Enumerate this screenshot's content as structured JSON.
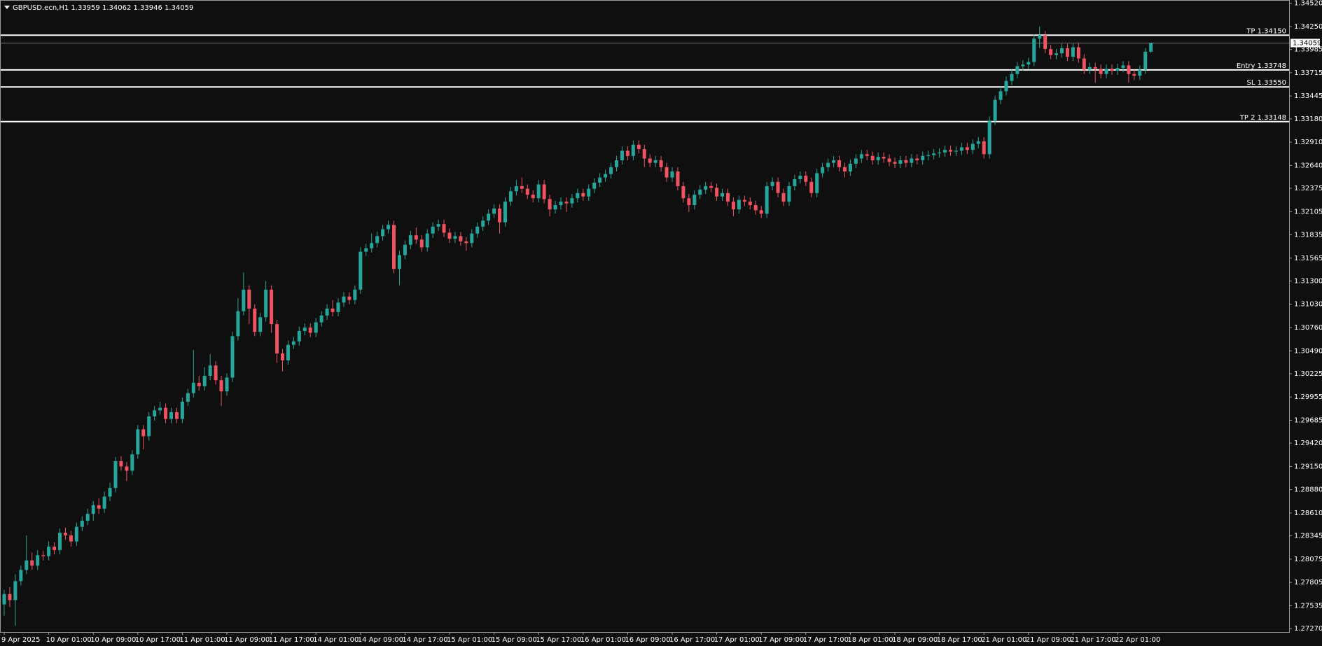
{
  "chart_data": {
    "type": "candlestick",
    "title": "GBPUSD.ecn,H1  1.33959 1.34062 1.33946 1.34059",
    "bull_color": "#26a69a",
    "bear_color": "#ef5361",
    "ylim": [
      1.2723,
      1.3455
    ],
    "yticks": [
      {
        "value": 1.3452,
        "label": "1.34520"
      },
      {
        "value": 1.3425,
        "label": "1.34250"
      },
      {
        "value": 1.33985,
        "label": "1.33985"
      },
      {
        "value": 1.33715,
        "label": "1.33715"
      },
      {
        "value": 1.33445,
        "label": "1.33445"
      },
      {
        "value": 1.3318,
        "label": "1.33180"
      },
      {
        "value": 1.3291,
        "label": "1.32910"
      },
      {
        "value": 1.3264,
        "label": "1.32640"
      },
      {
        "value": 1.32375,
        "label": "1.32375"
      },
      {
        "value": 1.32105,
        "label": "1.32105"
      },
      {
        "value": 1.31835,
        "label": "1.31835"
      },
      {
        "value": 1.31565,
        "label": "1.31565"
      },
      {
        "value": 1.313,
        "label": "1.31300"
      },
      {
        "value": 1.3103,
        "label": "1.31030"
      },
      {
        "value": 1.3076,
        "label": "1.30760"
      },
      {
        "value": 1.3049,
        "label": "1.30490"
      },
      {
        "value": 1.30225,
        "label": "1.30225"
      },
      {
        "value": 1.29955,
        "label": "1.29955"
      },
      {
        "value": 1.29685,
        "label": "1.29685"
      },
      {
        "value": 1.2942,
        "label": "1.29420"
      },
      {
        "value": 1.2915,
        "label": "1.29150"
      },
      {
        "value": 1.2888,
        "label": "1.28880"
      },
      {
        "value": 1.2861,
        "label": "1.28610"
      },
      {
        "value": 1.28345,
        "label": "1.28345"
      },
      {
        "value": 1.28075,
        "label": "1.28075"
      },
      {
        "value": 1.27805,
        "label": "1.27805"
      },
      {
        "value": 1.27535,
        "label": "1.27535"
      },
      {
        "value": 1.2727,
        "label": "1.27270"
      }
    ],
    "levels": [
      {
        "label": "TP 1.34150",
        "value": 1.3415
      },
      {
        "label": "Entry 1.33748",
        "value": 1.33748
      },
      {
        "label": "SL 1.33550",
        "value": 1.3355
      },
      {
        "label": "TP 2 1.33148",
        "value": 1.33148
      }
    ],
    "price_line": {
      "value": 1.34059,
      "label": "1.34059"
    },
    "categories": [
      "9 Apr 2025",
      null,
      null,
      null,
      null,
      null,
      null,
      null,
      "10 Apr 01:00",
      null,
      null,
      null,
      null,
      null,
      null,
      null,
      "10 Apr 09:00",
      null,
      null,
      null,
      null,
      null,
      null,
      null,
      "10 Apr 17:00",
      null,
      null,
      null,
      null,
      null,
      null,
      null,
      "11 Apr 01:00",
      null,
      null,
      null,
      null,
      null,
      null,
      null,
      "11 Apr 09:00",
      null,
      null,
      null,
      null,
      null,
      null,
      null,
      "11 Apr 17:00",
      null,
      null,
      null,
      null,
      null,
      null,
      null,
      "14 Apr 01:00",
      null,
      null,
      null,
      null,
      null,
      null,
      null,
      "14 Apr 09:00",
      null,
      null,
      null,
      null,
      null,
      null,
      null,
      "14 Apr 17:00",
      null,
      null,
      null,
      null,
      null,
      null,
      null,
      "15 Apr 01:00",
      null,
      null,
      null,
      null,
      null,
      null,
      null,
      "15 Apr 09:00",
      null,
      null,
      null,
      null,
      null,
      null,
      null,
      "15 Apr 17:00",
      null,
      null,
      null,
      null,
      null,
      null,
      null,
      "16 Apr 01:00",
      null,
      null,
      null,
      null,
      null,
      null,
      null,
      "16 Apr 09:00",
      null,
      null,
      null,
      null,
      null,
      null,
      null,
      "16 Apr 17:00",
      null,
      null,
      null,
      null,
      null,
      null,
      null,
      "17 Apr 01:00",
      null,
      null,
      null,
      null,
      null,
      null,
      null,
      "17 Apr 09:00",
      null,
      null,
      null,
      null,
      null,
      null,
      null,
      "17 Apr 17:00",
      null,
      null,
      null,
      null,
      null,
      null,
      null,
      "18 Apr 01:00",
      null,
      null,
      null,
      null,
      null,
      null,
      null,
      "18 Apr 09:00",
      null,
      null,
      null,
      null,
      null,
      null,
      null,
      "18 Apr 17:00",
      null,
      null,
      null,
      null,
      null,
      null,
      null,
      "21 Apr 01:00",
      null,
      null,
      null,
      null,
      null,
      null,
      null,
      "21 Apr 09:00",
      null,
      null,
      null,
      null,
      null,
      null,
      null,
      "21 Apr 17:00",
      null,
      null,
      null,
      null,
      null,
      null,
      null,
      "22 Apr 01:00",
      null,
      null,
      null,
      null,
      null,
      null
    ],
    "open": [
      1.2755,
      1.2767,
      1.276,
      1.2782,
      1.2795,
      1.2806,
      1.28,
      1.2812,
      1.2811,
      1.2822,
      1.2818,
      1.2838,
      1.2835,
      1.2828,
      1.2845,
      1.2852,
      1.286,
      1.287,
      1.2866,
      1.288,
      1.289,
      1.2921,
      1.2915,
      1.291,
      1.2929,
      1.2958,
      1.295,
      1.2973,
      1.298,
      1.2983,
      1.297,
      1.2978,
      1.297,
      1.299,
      1.3,
      1.3012,
      1.3008,
      1.302,
      1.3032,
      1.3015,
      1.3002,
      1.3018,
      1.3066,
      1.3095,
      1.312,
      1.3098,
      1.3071,
      1.3088,
      1.312,
      1.308,
      1.3046,
      1.3038,
      1.3056,
      1.306,
      1.3072,
      1.3076,
      1.307,
      1.3082,
      1.309,
      1.3098,
      1.3094,
      1.3105,
      1.3112,
      1.3108,
      1.312,
      1.3164,
      1.3168,
      1.3174,
      1.3182,
      1.319,
      1.3195,
      1.3144,
      1.316,
      1.3172,
      1.3183,
      1.3178,
      1.3169,
      1.3185,
      1.3193,
      1.3196,
      1.3186,
      1.3179,
      1.3182,
      1.3176,
      1.3174,
      1.3185,
      1.3193,
      1.32,
      1.3208,
      1.3214,
      1.3198,
      1.3222,
      1.3234,
      1.324,
      1.3237,
      1.323,
      1.3226,
      1.3242,
      1.3225,
      1.3213,
      1.3218,
      1.3222,
      1.322,
      1.3226,
      1.3232,
      1.3228,
      1.3237,
      1.3244,
      1.325,
      1.3254,
      1.3262,
      1.327,
      1.3281,
      1.3275,
      1.3288,
      1.3283,
      1.3272,
      1.3267,
      1.327,
      1.3262,
      1.325,
      1.3257,
      1.324,
      1.3226,
      1.3218,
      1.323,
      1.3236,
      1.324,
      1.3238,
      1.3228,
      1.3232,
      1.3222,
      1.3213,
      1.3224,
      1.3222,
      1.3218,
      1.3212,
      1.3208,
      1.324,
      1.3245,
      1.3232,
      1.3222,
      1.324,
      1.3248,
      1.3252,
      1.3245,
      1.3232,
      1.3255,
      1.3262,
      1.3267,
      1.327,
      1.3262,
      1.3257,
      1.3266,
      1.3272,
      1.3277,
      1.3275,
      1.327,
      1.3274,
      1.3272,
      1.3268,
      1.3266,
      1.327,
      1.3267,
      1.3272,
      1.327,
      1.3275,
      1.3276,
      1.3278,
      1.3279,
      1.3282,
      1.328,
      1.3281,
      1.3285,
      1.3282,
      1.3289,
      1.3292,
      1.3277,
      1.3316,
      1.334,
      1.335,
      1.3362,
      1.337,
      1.3379,
      1.3381,
      1.3384,
      1.3411,
      1.3415,
      1.3399,
      1.3392,
      1.3394,
      1.34,
      1.339,
      1.3401,
      1.3388,
      1.3375,
      1.3378,
      1.3376,
      1.337,
      1.3376,
      1.3374,
      1.3377,
      1.338,
      1.337,
      1.3368,
      1.3375,
      1.33959
    ],
    "high": [
      1.2772,
      1.2775,
      1.279,
      1.28,
      1.2835,
      1.2815,
      1.2818,
      1.2817,
      1.2828,
      1.2827,
      1.2843,
      1.2844,
      1.284,
      1.285,
      1.2857,
      1.2866,
      1.2875,
      1.2878,
      1.2886,
      1.2896,
      1.2926,
      1.2927,
      1.292,
      1.2934,
      1.2963,
      1.2963,
      1.2978,
      1.2985,
      1.299,
      1.2988,
      1.2983,
      1.2983,
      1.2995,
      1.3005,
      1.305,
      1.302,
      1.303,
      1.3045,
      1.3037,
      1.302,
      1.3023,
      1.3071,
      1.311,
      1.314,
      1.3125,
      1.3103,
      1.3093,
      1.313,
      1.3125,
      1.3085,
      1.3051,
      1.3061,
      1.3065,
      1.3077,
      1.3081,
      1.3081,
      1.3087,
      1.3095,
      1.3103,
      1.3108,
      1.311,
      1.3117,
      1.3117,
      1.3125,
      1.3169,
      1.3173,
      1.3185,
      1.3187,
      1.3195,
      1.32,
      1.32,
      1.3165,
      1.3177,
      1.3188,
      1.3192,
      1.3183,
      1.319,
      1.3198,
      1.3201,
      1.3201,
      1.3191,
      1.3187,
      1.3187,
      1.3181,
      1.319,
      1.3198,
      1.3205,
      1.3213,
      1.3219,
      1.3219,
      1.3227,
      1.3239,
      1.3247,
      1.325,
      1.3242,
      1.3235,
      1.3247,
      1.3247,
      1.323,
      1.3223,
      1.3227,
      1.3227,
      1.3231,
      1.3237,
      1.3237,
      1.3242,
      1.3249,
      1.3255,
      1.3259,
      1.3267,
      1.3275,
      1.3286,
      1.3286,
      1.3293,
      1.3293,
      1.3288,
      1.3277,
      1.3275,
      1.3275,
      1.3267,
      1.3262,
      1.3262,
      1.3245,
      1.3231,
      1.3235,
      1.3241,
      1.3245,
      1.3245,
      1.3243,
      1.3237,
      1.3237,
      1.3227,
      1.3229,
      1.3229,
      1.3227,
      1.3223,
      1.3217,
      1.3245,
      1.325,
      1.325,
      1.3237,
      1.3245,
      1.3253,
      1.3257,
      1.3257,
      1.325,
      1.326,
      1.3267,
      1.3272,
      1.3275,
      1.3275,
      1.3267,
      1.3271,
      1.3277,
      1.3282,
      1.3282,
      1.328,
      1.3279,
      1.3279,
      1.3277,
      1.3273,
      1.3275,
      1.3275,
      1.3277,
      1.3277,
      1.328,
      1.3281,
      1.3283,
      1.3284,
      1.3287,
      1.3287,
      1.3286,
      1.329,
      1.329,
      1.3294,
      1.3297,
      1.3297,
      1.3321,
      1.3345,
      1.3355,
      1.3367,
      1.3375,
      1.3384,
      1.3386,
      1.3389,
      1.3416,
      1.3425,
      1.342,
      1.3404,
      1.3399,
      1.3405,
      1.3405,
      1.3406,
      1.3406,
      1.3393,
      1.3383,
      1.3383,
      1.3381,
      1.3381,
      1.3381,
      1.3382,
      1.3385,
      1.3385,
      1.3375,
      1.338,
      1.34,
      1.34062
    ],
    "low": [
      1.2742,
      1.2752,
      1.273,
      1.2777,
      1.279,
      1.2795,
      1.2795,
      1.2806,
      1.2806,
      1.2813,
      1.2813,
      1.283,
      1.2822,
      1.2823,
      1.284,
      1.2847,
      1.2852,
      1.286,
      1.2861,
      1.2875,
      1.2885,
      1.291,
      1.2898,
      1.2905,
      1.2924,
      1.2935,
      1.2945,
      1.2968,
      1.2975,
      1.2965,
      1.2965,
      1.2965,
      1.2965,
      1.2985,
      1.2995,
      1.3003,
      1.3003,
      1.3015,
      1.301,
      1.2985,
      1.2997,
      1.3013,
      1.3061,
      1.309,
      1.308,
      1.3066,
      1.3066,
      1.3083,
      1.307,
      1.3035,
      1.3025,
      1.3033,
      1.3051,
      1.3055,
      1.3067,
      1.3065,
      1.3065,
      1.3077,
      1.3085,
      1.3089,
      1.3089,
      1.31,
      1.3103,
      1.3103,
      1.3115,
      1.3159,
      1.3163,
      1.3169,
      1.3177,
      1.3185,
      1.3139,
      1.3125,
      1.3155,
      1.3167,
      1.3173,
      1.3164,
      1.3164,
      1.318,
      1.3188,
      1.3181,
      1.3174,
      1.3174,
      1.3171,
      1.3165,
      1.3169,
      1.318,
      1.3188,
      1.3195,
      1.3203,
      1.3185,
      1.3193,
      1.3217,
      1.3229,
      1.3232,
      1.3225,
      1.3221,
      1.3221,
      1.322,
      1.3205,
      1.3208,
      1.3213,
      1.321,
      1.3215,
      1.3221,
      1.3223,
      1.3223,
      1.3232,
      1.3239,
      1.3245,
      1.3249,
      1.3257,
      1.3265,
      1.327,
      1.327,
      1.3278,
      1.3262,
      1.3262,
      1.3262,
      1.3257,
      1.3245,
      1.3245,
      1.3235,
      1.3221,
      1.321,
      1.3213,
      1.3225,
      1.3231,
      1.3233,
      1.3223,
      1.3223,
      1.3217,
      1.3205,
      1.3208,
      1.3217,
      1.3213,
      1.3207,
      1.3203,
      1.3203,
      1.3235,
      1.3227,
      1.3217,
      1.3217,
      1.3235,
      1.3243,
      1.324,
      1.3227,
      1.3227,
      1.325,
      1.3257,
      1.3262,
      1.3257,
      1.325,
      1.3252,
      1.3261,
      1.3267,
      1.327,
      1.3265,
      1.3265,
      1.3267,
      1.3263,
      1.3261,
      1.3261,
      1.3262,
      1.3262,
      1.3265,
      1.3265,
      1.327,
      1.3271,
      1.3273,
      1.3274,
      1.3275,
      1.3275,
      1.3276,
      1.3277,
      1.3277,
      1.3284,
      1.3272,
      1.3272,
      1.3311,
      1.3335,
      1.3345,
      1.3357,
      1.3365,
      1.3374,
      1.3376,
      1.3379,
      1.34,
      1.3394,
      1.3387,
      1.3387,
      1.3389,
      1.3385,
      1.3385,
      1.3383,
      1.337,
      1.337,
      1.336,
      1.3365,
      1.3365,
      1.3369,
      1.3369,
      1.3372,
      1.336,
      1.3363,
      1.3363,
      1.337,
      1.33946
    ],
    "close": [
      1.2767,
      1.276,
      1.2782,
      1.2795,
      1.2806,
      1.28,
      1.2812,
      1.2811,
      1.2822,
      1.2818,
      1.2838,
      1.2835,
      1.2828,
      1.2845,
      1.2852,
      1.286,
      1.287,
      1.2866,
      1.288,
      1.289,
      1.2921,
      1.2915,
      1.291,
      1.2929,
      1.2958,
      1.295,
      1.2973,
      1.298,
      1.2983,
      1.297,
      1.2978,
      1.297,
      1.299,
      1.3,
      1.3012,
      1.3008,
      1.302,
      1.3032,
      1.3015,
      1.3002,
      1.3018,
      1.3066,
      1.3095,
      1.312,
      1.3098,
      1.3071,
      1.3088,
      1.312,
      1.308,
      1.3046,
      1.3038,
      1.3056,
      1.306,
      1.3072,
      1.3076,
      1.307,
      1.3082,
      1.309,
      1.3098,
      1.3094,
      1.3105,
      1.3112,
      1.3108,
      1.312,
      1.3164,
      1.3168,
      1.3174,
      1.3182,
      1.319,
      1.3195,
      1.3144,
      1.316,
      1.3172,
      1.3183,
      1.3178,
      1.3169,
      1.3185,
      1.3193,
      1.3196,
      1.3186,
      1.3179,
      1.3182,
      1.3176,
      1.3174,
      1.3185,
      1.3193,
      1.32,
      1.3208,
      1.3214,
      1.3198,
      1.3222,
      1.3234,
      1.324,
      1.3237,
      1.323,
      1.3226,
      1.3242,
      1.3225,
      1.3213,
      1.3218,
      1.3222,
      1.322,
      1.3226,
      1.3232,
      1.3228,
      1.3237,
      1.3244,
      1.325,
      1.3254,
      1.3262,
      1.327,
      1.3281,
      1.3275,
      1.3288,
      1.3283,
      1.3272,
      1.3267,
      1.327,
      1.3262,
      1.325,
      1.3257,
      1.324,
      1.3226,
      1.3218,
      1.323,
      1.3236,
      1.324,
      1.3238,
      1.3228,
      1.3232,
      1.3222,
      1.3213,
      1.3224,
      1.3222,
      1.3218,
      1.3212,
      1.3208,
      1.324,
      1.3245,
      1.3232,
      1.3222,
      1.324,
      1.3248,
      1.3252,
      1.3245,
      1.3232,
      1.3255,
      1.3262,
      1.3267,
      1.327,
      1.3262,
      1.3257,
      1.3266,
      1.3272,
      1.3277,
      1.3275,
      1.327,
      1.3274,
      1.3272,
      1.3268,
      1.3266,
      1.327,
      1.3267,
      1.3272,
      1.327,
      1.3275,
      1.3276,
      1.3278,
      1.3279,
      1.3282,
      1.328,
      1.3281,
      1.3285,
      1.3282,
      1.3289,
      1.3292,
      1.3277,
      1.3316,
      1.334,
      1.335,
      1.3362,
      1.337,
      1.3379,
      1.3381,
      1.3384,
      1.3411,
      1.3415,
      1.3399,
      1.3392,
      1.3394,
      1.34,
      1.339,
      1.3401,
      1.3388,
      1.3375,
      1.3378,
      1.3376,
      1.337,
      1.3376,
      1.3374,
      1.3377,
      1.338,
      1.337,
      1.3368,
      1.3375,
      1.33959,
      1.34059
    ]
  }
}
